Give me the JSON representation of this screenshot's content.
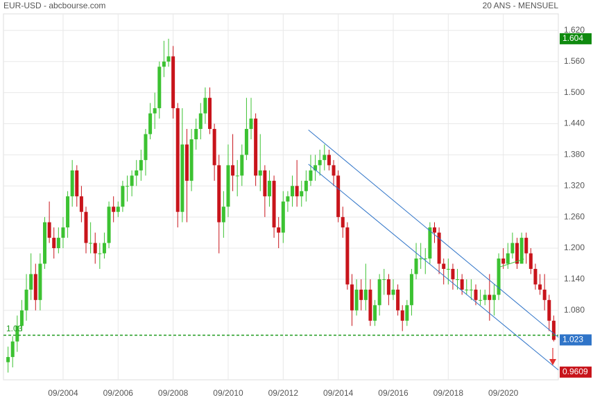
{
  "chart_data": {
    "type": "candlestick",
    "title": "EUR-USD - abcbourse.com",
    "subtitle": "20 ANS - MENSUEL",
    "up_color": "#3cc232",
    "down_color": "#c8141b",
    "x": [
      "08/2002",
      "10/2002",
      "12/2002",
      "02/2003",
      "04/2003",
      "06/2003",
      "08/2003",
      "10/2003",
      "12/2003",
      "02/2004",
      "04/2004",
      "06/2004",
      "08/2004",
      "10/2004",
      "12/2004",
      "02/2005",
      "04/2005",
      "06/2005",
      "08/2005",
      "10/2005",
      "12/2005",
      "02/2006",
      "04/2006",
      "06/2006",
      "08/2006",
      "10/2006",
      "12/2006",
      "02/2007",
      "04/2007",
      "06/2007",
      "08/2007",
      "10/2007",
      "12/2007",
      "02/2008",
      "04/2008",
      "06/2008",
      "08/2008",
      "10/2008",
      "12/2008",
      "02/2009",
      "04/2009",
      "06/2009",
      "08/2009",
      "10/2009",
      "12/2009",
      "02/2010",
      "04/2010",
      "06/2010",
      "08/2010",
      "10/2010",
      "12/2010",
      "02/2011",
      "04/2011",
      "06/2011",
      "08/2011",
      "10/2011",
      "12/2011",
      "02/2012",
      "04/2012",
      "06/2012",
      "08/2012",
      "10/2012",
      "12/2012",
      "02/2013",
      "04/2013",
      "06/2013",
      "08/2013",
      "10/2013",
      "12/2013",
      "02/2014",
      "04/2014",
      "06/2014",
      "08/2014",
      "10/2014",
      "12/2014",
      "02/2015",
      "04/2015",
      "06/2015",
      "08/2015",
      "10/2015",
      "12/2015",
      "02/2016",
      "04/2016",
      "06/2016",
      "08/2016",
      "10/2016",
      "12/2016",
      "02/2017",
      "04/2017",
      "06/2017",
      "08/2017",
      "10/2017",
      "12/2017",
      "02/2018",
      "04/2018",
      "06/2018",
      "08/2018",
      "10/2018",
      "12/2018",
      "02/2019",
      "04/2019",
      "06/2019",
      "08/2019",
      "10/2019",
      "12/2019",
      "02/2020",
      "04/2020",
      "06/2020",
      "08/2020",
      "10/2020",
      "12/2020",
      "02/2021",
      "04/2021",
      "06/2021",
      "08/2021",
      "10/2021",
      "12/2021",
      "02/2022",
      "04/2022",
      "06/2022"
    ],
    "open": [
      0.98,
      0.99,
      1.02,
      1.05,
      1.08,
      1.12,
      1.15,
      1.1,
      1.17,
      1.25,
      1.22,
      1.2,
      1.22,
      1.24,
      1.3,
      1.35,
      1.3,
      1.27,
      1.21,
      1.21,
      1.19,
      1.19,
      1.21,
      1.28,
      1.27,
      1.28,
      1.32,
      1.32,
      1.34,
      1.35,
      1.37,
      1.42,
      1.46,
      1.47,
      1.55,
      1.56,
      1.57,
      1.47,
      1.27,
      1.4,
      1.33,
      1.41,
      1.43,
      1.46,
      1.49,
      1.43,
      1.36,
      1.25,
      1.28,
      1.36,
      1.34,
      1.34,
      1.38,
      1.43,
      1.45,
      1.34,
      1.35,
      1.3,
      1.33,
      1.24,
      1.23,
      1.29,
      1.3,
      1.32,
      1.3,
      1.31,
      1.33,
      1.35,
      1.36,
      1.37,
      1.38,
      1.36,
      1.34,
      1.26,
      1.24,
      1.13,
      1.08,
      1.12,
      1.1,
      1.12,
      1.06,
      1.09,
      1.14,
      1.14,
      1.11,
      1.12,
      1.08,
      1.06,
      1.09,
      1.15,
      1.18,
      1.18,
      1.18,
      1.24,
      1.23,
      1.17,
      1.16,
      1.16,
      1.14,
      1.14,
      1.12,
      1.12,
      1.12,
      1.1,
      1.1,
      1.11,
      1.1,
      1.11,
      1.18,
      1.17,
      1.19,
      1.21,
      1.17,
      1.22,
      1.19,
      1.16,
      1.13,
      1.12,
      1.1,
      1.06
    ],
    "high": [
      1.01,
      1.03,
      1.07,
      1.1,
      1.15,
      1.19,
      1.17,
      1.19,
      1.26,
      1.29,
      1.24,
      1.24,
      1.26,
      1.31,
      1.37,
      1.36,
      1.32,
      1.28,
      1.25,
      1.23,
      1.21,
      1.23,
      1.29,
      1.3,
      1.29,
      1.33,
      1.34,
      1.35,
      1.37,
      1.39,
      1.43,
      1.48,
      1.5,
      1.56,
      1.6,
      1.604,
      1.59,
      1.48,
      1.47,
      1.43,
      1.43,
      1.45,
      1.48,
      1.51,
      1.51,
      1.44,
      1.38,
      1.31,
      1.4,
      1.42,
      1.37,
      1.4,
      1.49,
      1.49,
      1.46,
      1.42,
      1.36,
      1.35,
      1.34,
      1.26,
      1.31,
      1.31,
      1.34,
      1.37,
      1.33,
      1.35,
      1.38,
      1.38,
      1.39,
      1.4,
      1.39,
      1.37,
      1.35,
      1.28,
      1.25,
      1.15,
      1.14,
      1.14,
      1.17,
      1.14,
      1.1,
      1.15,
      1.16,
      1.15,
      1.14,
      1.13,
      1.09,
      1.1,
      1.16,
      1.21,
      1.21,
      1.2,
      1.25,
      1.25,
      1.24,
      1.18,
      1.18,
      1.17,
      1.16,
      1.15,
      1.14,
      1.14,
      1.13,
      1.12,
      1.12,
      1.15,
      1.13,
      1.19,
      1.2,
      1.21,
      1.23,
      1.22,
      1.23,
      1.23,
      1.2,
      1.17,
      1.15,
      1.15,
      1.11,
      1.07
    ],
    "low": [
      0.96,
      0.97,
      1.0,
      1.04,
      1.06,
      1.1,
      1.08,
      1.08,
      1.16,
      1.21,
      1.18,
      1.19,
      1.2,
      1.22,
      1.28,
      1.28,
      1.25,
      1.19,
      1.19,
      1.17,
      1.16,
      1.18,
      1.2,
      1.25,
      1.26,
      1.27,
      1.29,
      1.3,
      1.32,
      1.33,
      1.34,
      1.41,
      1.43,
      1.45,
      1.53,
      1.55,
      1.45,
      1.24,
      1.25,
      1.25,
      1.31,
      1.39,
      1.41,
      1.44,
      1.42,
      1.33,
      1.19,
      1.22,
      1.26,
      1.31,
      1.3,
      1.32,
      1.37,
      1.41,
      1.32,
      1.31,
      1.26,
      1.28,
      1.22,
      1.2,
      1.21,
      1.27,
      1.28,
      1.28,
      1.28,
      1.29,
      1.32,
      1.33,
      1.34,
      1.35,
      1.35,
      1.32,
      1.25,
      1.22,
      1.12,
      1.05,
      1.07,
      1.08,
      1.08,
      1.05,
      1.05,
      1.07,
      1.11,
      1.09,
      1.1,
      1.07,
      1.04,
      1.05,
      1.07,
      1.14,
      1.16,
      1.15,
      1.17,
      1.21,
      1.15,
      1.13,
      1.13,
      1.12,
      1.12,
      1.11,
      1.11,
      1.1,
      1.09,
      1.09,
      1.09,
      1.06,
      1.07,
      1.1,
      1.16,
      1.16,
      1.18,
      1.16,
      1.17,
      1.17,
      1.15,
      1.12,
      1.11,
      1.08,
      1.04,
      1.02
    ],
    "close": [
      0.99,
      1.02,
      1.05,
      1.08,
      1.12,
      1.15,
      1.1,
      1.17,
      1.25,
      1.22,
      1.2,
      1.22,
      1.24,
      1.3,
      1.35,
      1.3,
      1.27,
      1.21,
      1.21,
      1.19,
      1.19,
      1.21,
      1.28,
      1.27,
      1.28,
      1.32,
      1.32,
      1.34,
      1.35,
      1.37,
      1.42,
      1.46,
      1.47,
      1.55,
      1.56,
      1.57,
      1.47,
      1.27,
      1.4,
      1.33,
      1.41,
      1.43,
      1.46,
      1.49,
      1.43,
      1.36,
      1.25,
      1.28,
      1.36,
      1.34,
      1.34,
      1.38,
      1.43,
      1.45,
      1.34,
      1.35,
      1.3,
      1.33,
      1.24,
      1.23,
      1.29,
      1.3,
      1.32,
      1.3,
      1.31,
      1.33,
      1.35,
      1.36,
      1.37,
      1.38,
      1.36,
      1.34,
      1.26,
      1.24,
      1.13,
      1.08,
      1.12,
      1.1,
      1.12,
      1.06,
      1.09,
      1.14,
      1.14,
      1.11,
      1.12,
      1.08,
      1.06,
      1.09,
      1.15,
      1.18,
      1.18,
      1.18,
      1.24,
      1.23,
      1.17,
      1.16,
      1.16,
      1.14,
      1.14,
      1.12,
      1.12,
      1.12,
      1.1,
      1.1,
      1.11,
      1.1,
      1.11,
      1.18,
      1.17,
      1.19,
      1.21,
      1.17,
      1.22,
      1.19,
      1.16,
      1.13,
      1.12,
      1.1,
      1.06,
      1.023
    ],
    "ylim": [
      0.946,
      1.652
    ],
    "yticks": [
      {
        "value": 1.62,
        "label": "1.620"
      },
      {
        "value": 1.56,
        "label": "1.560"
      },
      {
        "value": 1.5,
        "label": "1.500"
      },
      {
        "value": 1.44,
        "label": "1.440"
      },
      {
        "value": 1.38,
        "label": "1.380"
      },
      {
        "value": 1.32,
        "label": "1.320"
      },
      {
        "value": 1.26,
        "label": "1.260"
      },
      {
        "value": 1.2,
        "label": "1.200"
      },
      {
        "value": 1.14,
        "label": "1.140"
      },
      {
        "value": 1.08,
        "label": "1.080"
      }
    ],
    "xlim": [
      "07/2002",
      "09/2022"
    ],
    "xticks": [
      "09/2004",
      "09/2006",
      "09/2008",
      "09/2010",
      "09/2012",
      "09/2014",
      "09/2016",
      "09/2018",
      "09/2020"
    ],
    "grid": true,
    "level": {
      "value": 1.032,
      "label": "1.03",
      "color": "#1e9a1e"
    },
    "trendlines": [
      {
        "color": "#2f74c8",
        "x": [
          "08/2013",
          "09/2022"
        ],
        "y": [
          1.428,
          1.028
        ]
      },
      {
        "color": "#2f74c8",
        "x": [
          "08/2013",
          "09/2022"
        ],
        "y": [
          1.362,
          0.965
        ]
      },
      {
        "color": "#3cc232",
        "x": [
          "07/2020",
          "06/2021"
        ],
        "y": [
          1.163,
          1.179
        ]
      }
    ],
    "price_labels": [
      {
        "value": 1.604,
        "color": "#0f8a0f"
      },
      {
        "value": 1.023,
        "color": "#2f74c8"
      },
      {
        "value": 0.9609,
        "color": "#c8141b"
      }
    ]
  }
}
